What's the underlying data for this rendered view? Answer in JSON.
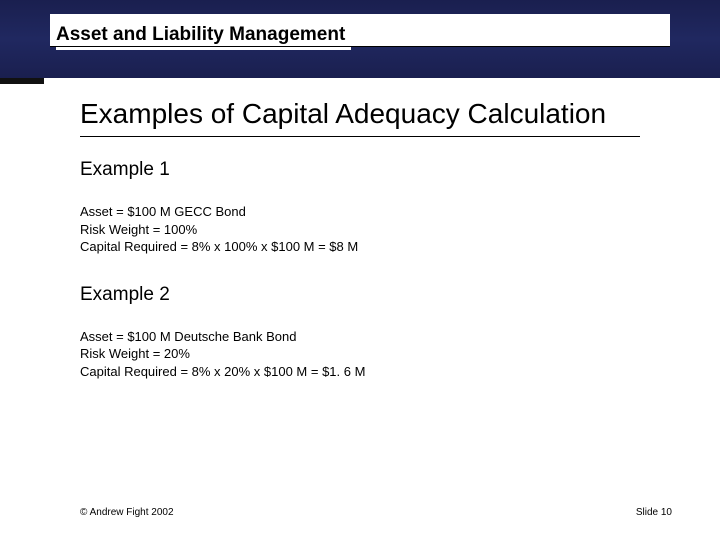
{
  "colors": {
    "header_band_start": "#1a1f4f",
    "header_band_mid": "#202860",
    "background": "#ffffff",
    "text": "#000000",
    "rule": "#000000"
  },
  "header": {
    "section_title": "Asset and Liability Management"
  },
  "slide": {
    "title": "Examples of Capital Adequacy Calculation",
    "examples": [
      {
        "heading": "Example 1",
        "lines": [
          "Asset = $100 M GECC Bond",
          "Risk Weight = 100%",
          "Capital Required = 8% x 100% x $100 M  = $8 M"
        ]
      },
      {
        "heading": "Example 2",
        "lines": [
          "Asset = $100 M Deutsche Bank Bond",
          "Risk Weight = 20%",
          "Capital Required = 8% x 20% x $100 M = $1. 6 M"
        ]
      }
    ]
  },
  "footer": {
    "copyright": "© Andrew Fight 2002",
    "slide_label": "Slide 10"
  }
}
